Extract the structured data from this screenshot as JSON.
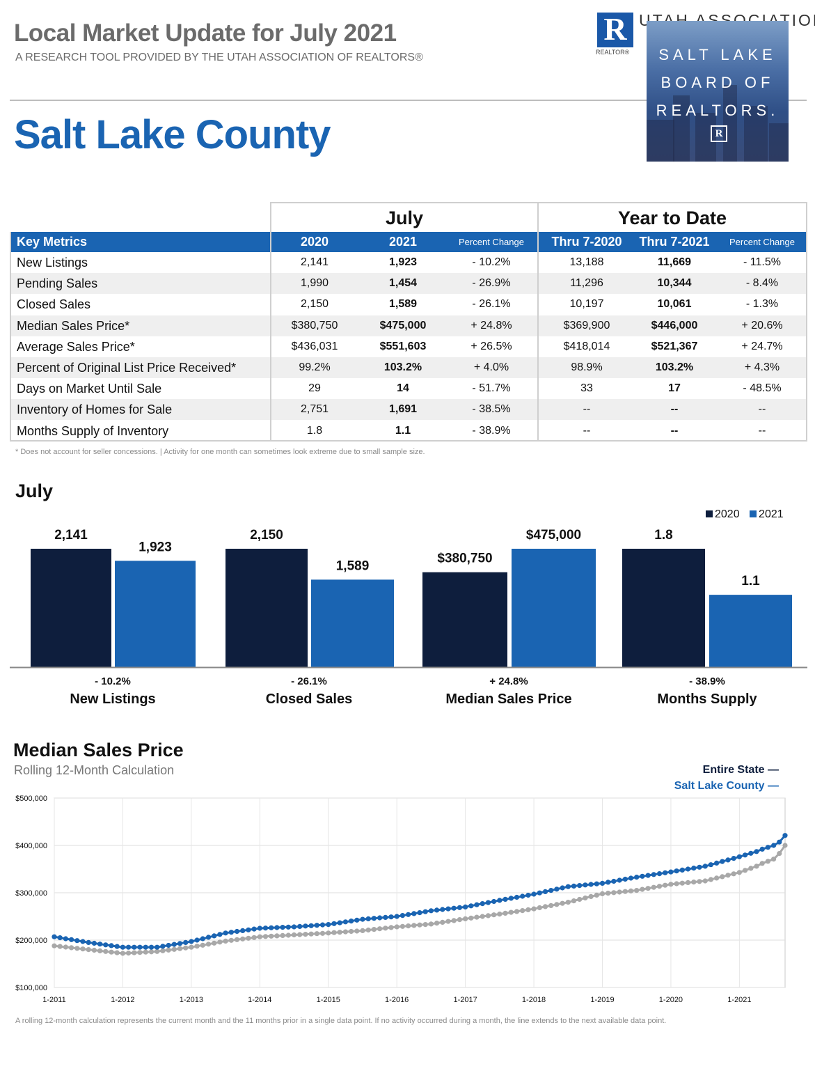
{
  "header": {
    "title": "Local Market Update for July 2021",
    "subtitle": "A RESEARCH TOOL PROVIDED BY THE UTAH ASSOCIATION OF REALTORS®",
    "county": "Salt Lake County",
    "ua_logo_letter": "R",
    "ua_realtor_text": "REALTOR®",
    "ua_name": "UTAH ASSOCIATION",
    "slb_lines": [
      "SALT LAKE",
      "BOARD OF",
      "REALTORS."
    ],
    "slb_mark": "R"
  },
  "table": {
    "group_july": "July",
    "group_ytd": "Year to Date",
    "head": {
      "metric": "Key Metrics",
      "y2020": "2020",
      "y2021": "2021",
      "pct": "Percent Change",
      "thru2020": "Thru 7-2020",
      "thru2021": "Thru 7-2021",
      "pct_ytd": "Percent Change"
    },
    "rows": [
      {
        "label": "New Listings",
        "jul2020": "2,141",
        "jul2021": "1,923",
        "julpct": "- 10.2%",
        "ytd2020": "13,188",
        "ytd2021": "11,669",
        "ytdpct": "- 11.5%"
      },
      {
        "label": "Pending Sales",
        "jul2020": "1,990",
        "jul2021": "1,454",
        "julpct": "- 26.9%",
        "ytd2020": "11,296",
        "ytd2021": "10,344",
        "ytdpct": "- 8.4%"
      },
      {
        "label": "Closed Sales",
        "jul2020": "2,150",
        "jul2021": "1,589",
        "julpct": "- 26.1%",
        "ytd2020": "10,197",
        "ytd2021": "10,061",
        "ytdpct": "- 1.3%"
      },
      {
        "label": "Median Sales Price*",
        "jul2020": "$380,750",
        "jul2021": "$475,000",
        "julpct": "+ 24.8%",
        "ytd2020": "$369,900",
        "ytd2021": "$446,000",
        "ytdpct": "+ 20.6%"
      },
      {
        "label": "Average Sales Price*",
        "jul2020": "$436,031",
        "jul2021": "$551,603",
        "julpct": "+ 26.5%",
        "ytd2020": "$418,014",
        "ytd2021": "$521,367",
        "ytdpct": "+ 24.7%"
      },
      {
        "label": "Percent of Original List Price Received*",
        "jul2020": "99.2%",
        "jul2021": "103.2%",
        "julpct": "+ 4.0%",
        "ytd2020": "98.9%",
        "ytd2021": "103.2%",
        "ytdpct": "+ 4.3%"
      },
      {
        "label": "Days on Market Until Sale",
        "jul2020": "29",
        "jul2021": "14",
        "julpct": "- 51.7%",
        "ytd2020": "33",
        "ytd2021": "17",
        "ytdpct": "- 48.5%"
      },
      {
        "label": "Inventory of Homes for Sale",
        "jul2020": "2,751",
        "jul2021": "1,691",
        "julpct": "- 38.5%",
        "ytd2020": "--",
        "ytd2021": "--",
        "ytdpct": "--"
      },
      {
        "label": "Months Supply of Inventory",
        "jul2020": "1.8",
        "jul2021": "1.1",
        "julpct": "- 38.9%",
        "ytd2020": "--",
        "ytd2021": "--",
        "ytdpct": "--"
      }
    ],
    "footnote": "* Does not account for seller concessions.  |  Activity for one month can sometimes look extreme due to small sample size."
  },
  "colors": {
    "dark": "#0e1e3d",
    "blue": "#1a64b2",
    "grey": "#a8a8a8"
  },
  "chart_data": [
    {
      "type": "bar",
      "title": "July",
      "legend": [
        "2020",
        "2021"
      ],
      "categories": [
        "New Listings",
        "Closed Sales",
        "Median Sales Price",
        "Months Supply"
      ],
      "percent_change": [
        "- 10.2%",
        "- 26.1%",
        "+ 24.8%",
        "- 38.9%"
      ],
      "series": [
        {
          "name": "2020",
          "values": [
            2141,
            2150,
            380750,
            1.8
          ],
          "labels": [
            "2,141",
            "2,150",
            "$380,750",
            "1.8"
          ]
        },
        {
          "name": "2021",
          "values": [
            1923,
            1589,
            475000,
            1.1
          ],
          "labels": [
            "1,923",
            "1,589",
            "$475,000",
            "1.1"
          ]
        }
      ],
      "note": "each category pair is scaled independently"
    },
    {
      "type": "line",
      "title": "Median Sales Price",
      "subtitle": "Rolling 12-Month Calculation",
      "ylim": [
        100000,
        500000
      ],
      "yticks": [
        100000,
        200000,
        300000,
        400000,
        500000
      ],
      "ytick_labels": [
        "$100,000",
        "$200,000",
        "$300,000",
        "$400,000",
        "$500,000"
      ],
      "xtick_labels": [
        "1-2011",
        "1-2012",
        "1-2013",
        "1-2014",
        "1-2015",
        "1-2016",
        "1-2017",
        "1-2018",
        "1-2019",
        "1-2020",
        "1-2021"
      ],
      "x_start": "1-2011",
      "x_end": "7-2021",
      "series": [
        {
          "name": "Entire State",
          "color": "#a8a8a8",
          "knots": [
            [
              0,
              188000
            ],
            [
              6,
              180000
            ],
            [
              12,
              172000
            ],
            [
              18,
              176000
            ],
            [
              24,
              185000
            ],
            [
              30,
              198000
            ],
            [
              36,
              207000
            ],
            [
              42,
              211000
            ],
            [
              48,
              215000
            ],
            [
              54,
              220000
            ],
            [
              60,
              228000
            ],
            [
              66,
              234000
            ],
            [
              72,
              245000
            ],
            [
              78,
              255000
            ],
            [
              84,
              266000
            ],
            [
              90,
              280000
            ],
            [
              96,
              298000
            ],
            [
              102,
              305000
            ],
            [
              108,
              318000
            ],
            [
              114,
              325000
            ],
            [
              120,
              343000
            ],
            [
              123,
              356000
            ],
            [
              124,
              362000
            ],
            [
              126,
              371000
            ],
            [
              127,
              383000
            ],
            [
              128,
              400000
            ]
          ]
        },
        {
          "name": "Salt Lake County",
          "color": "#1a64b2",
          "knots": [
            [
              0,
              207000
            ],
            [
              6,
              195000
            ],
            [
              12,
              185000
            ],
            [
              18,
              185000
            ],
            [
              24,
              197000
            ],
            [
              30,
              215000
            ],
            [
              36,
              225000
            ],
            [
              42,
              228000
            ],
            [
              48,
              233000
            ],
            [
              54,
              244000
            ],
            [
              60,
              250000
            ],
            [
              66,
              262000
            ],
            [
              72,
              270000
            ],
            [
              78,
              284000
            ],
            [
              84,
              297000
            ],
            [
              90,
              313000
            ],
            [
              96,
              320000
            ],
            [
              102,
              333000
            ],
            [
              108,
              344000
            ],
            [
              114,
              356000
            ],
            [
              120,
              376000
            ],
            [
              123,
              387000
            ],
            [
              124,
              392000
            ],
            [
              126,
              400000
            ],
            [
              127,
              407000
            ],
            [
              128,
              421000
            ]
          ]
        }
      ],
      "legend": [
        "Entire State —",
        "Salt Lake County —"
      ],
      "footnote": "A rolling 12-month calculation represents the current month and the 11 months prior in a single data point. If no activity occurred during a month, the line extends to the next available data point."
    }
  ]
}
